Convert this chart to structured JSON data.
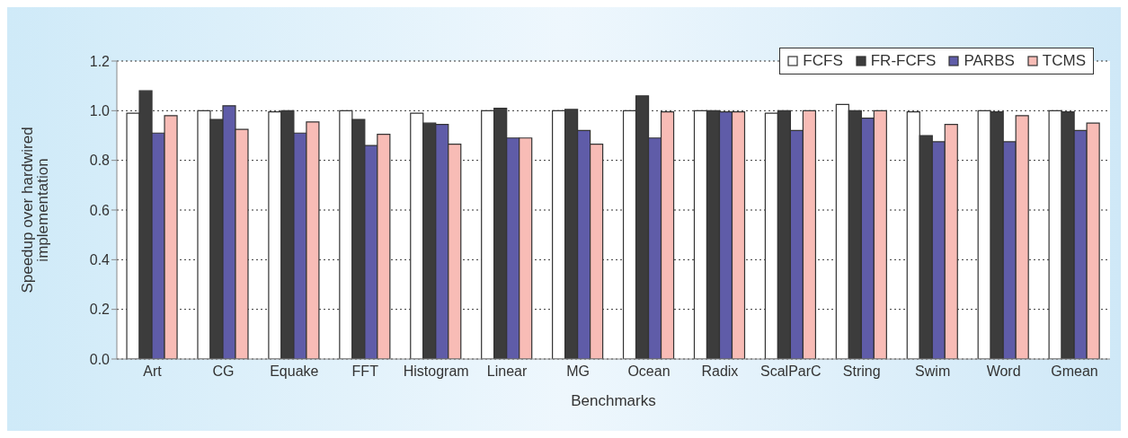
{
  "chart_data": {
    "type": "bar",
    "xlabel": "Benchmarks",
    "ylabel": "Speedup over hardwired implementation",
    "categories": [
      "Art",
      "CG",
      "Equake",
      "FFT",
      "Histogram",
      "Linear",
      "MG",
      "Ocean",
      "Radix",
      "ScalParC",
      "String",
      "Swim",
      "Word",
      "Gmean"
    ],
    "series": [
      {
        "name": "FCFS",
        "color": "#ffffff",
        "values": [
          0.99,
          1.0,
          0.995,
          1.0,
          0.99,
          1.0,
          1.0,
          1.0,
          1.0,
          0.99,
          1.025,
          0.995,
          1.0,
          1.0
        ]
      },
      {
        "name": "FR-FCFS",
        "color": "#3c3c3c",
        "values": [
          1.08,
          0.965,
          1.0,
          0.965,
          0.95,
          1.01,
          1.005,
          1.06,
          1.0,
          1.0,
          1.0,
          0.9,
          0.995,
          0.995
        ]
      },
      {
        "name": "PARBS",
        "color": "#5f5ca8",
        "values": [
          0.91,
          1.02,
          0.91,
          0.86,
          0.945,
          0.89,
          0.92,
          0.89,
          0.995,
          0.92,
          0.97,
          0.875,
          0.875,
          0.92
        ]
      },
      {
        "name": "TCMS",
        "color": "#f8bcb6",
        "values": [
          0.98,
          0.925,
          0.955,
          0.905,
          0.865,
          0.89,
          0.865,
          0.995,
          0.995,
          1.0,
          1.0,
          0.945,
          0.98,
          0.95
        ]
      }
    ],
    "ylim": [
      0,
      1.2
    ],
    "yticks": [
      {
        "value": 0,
        "label": "0.0"
      },
      0.2,
      0.4,
      0.6,
      0.8,
      {
        "value": 1,
        "label": "1.0"
      },
      1.2
    ],
    "grid": "y",
    "legend": "top right"
  }
}
